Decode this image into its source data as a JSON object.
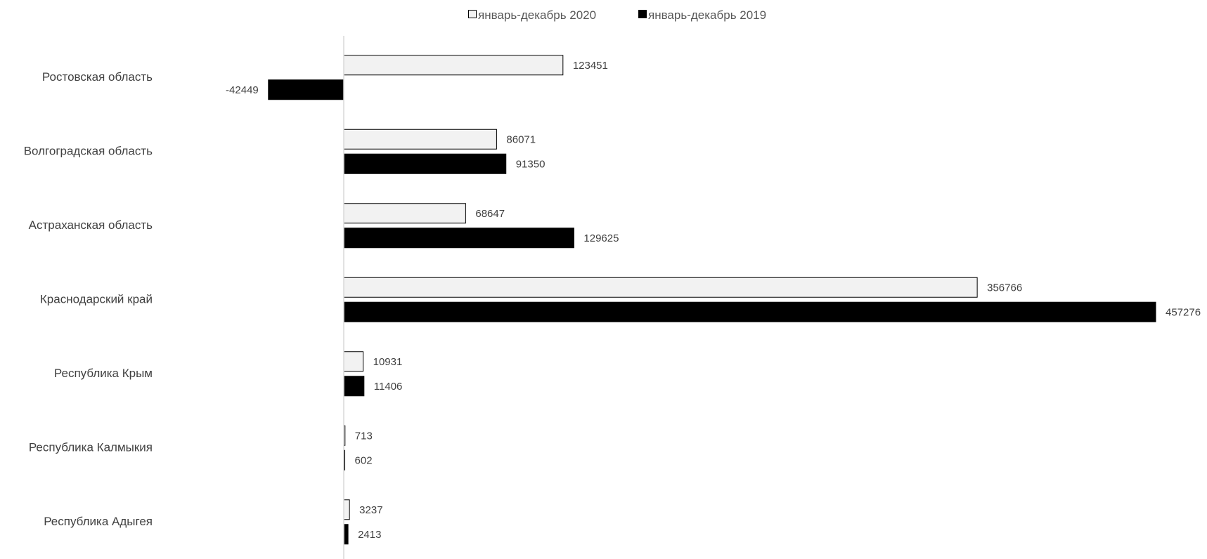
{
  "chart_data": {
    "type": "bar",
    "orientation": "horizontal",
    "title": "",
    "xlabel": "",
    "ylabel": "",
    "categories": [
      "Ростовская область",
      "Волгоградская область",
      "Астраханская область",
      "Краснодарский край",
      "Республика Крым",
      "Республика Калмыкия",
      "Республика Адыгея"
    ],
    "series": [
      {
        "name": "январь-декабрь 2020",
        "color": "#f2f2f2",
        "stroke": "#000000",
        "values": [
          123451,
          86071,
          68647,
          356766,
          10931,
          713,
          3237
        ]
      },
      {
        "name": "январь-декабрь 2019",
        "color": "#000000",
        "stroke": "#000000",
        "values": [
          -42449,
          91350,
          129625,
          457276,
          11406,
          602,
          2413
        ]
      }
    ],
    "xlim": [
      -42449,
      457276
    ],
    "legend_position": "top-center",
    "grid": false,
    "data_labels": true
  }
}
